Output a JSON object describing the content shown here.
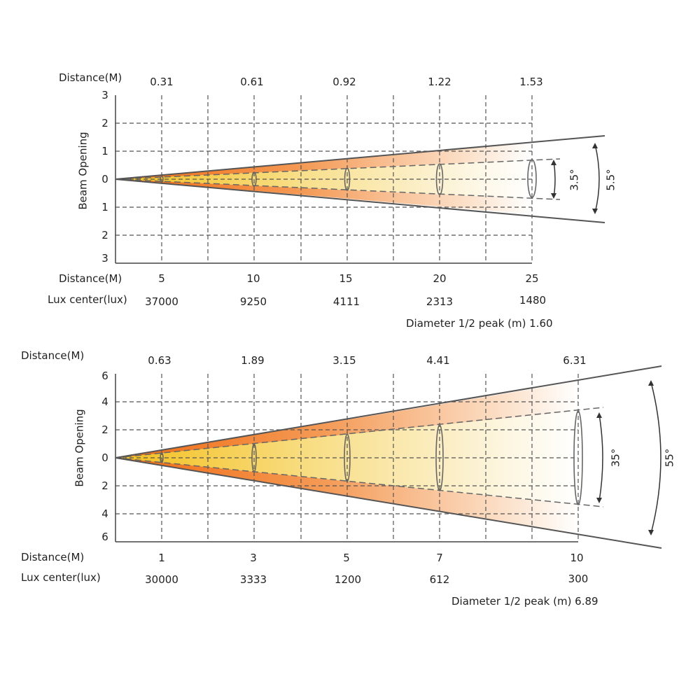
{
  "chart_data": [
    {
      "type": "beam-diagram",
      "top_axis_label": "Distance(M)",
      "bottom_axis_label": "Distance(M)",
      "lux_label": "Lux center(lux)",
      "ylabel": "Beam Opening",
      "y_ticks": [
        "3",
        "2",
        "1",
        "0",
        "1",
        "2",
        "3"
      ],
      "diameters": [
        "0.31",
        "0.61",
        "0.92",
        "1.22",
        "1.53"
      ],
      "distances": [
        "5",
        "10",
        "15",
        "20",
        "25"
      ],
      "lux": [
        "37000",
        "9250",
        "4111",
        "2313",
        "1480"
      ],
      "note": "Diameter 1/2 peak (m) 1.60",
      "inner_angle": "3.5°",
      "outer_angle": "5.5°"
    },
    {
      "type": "beam-diagram",
      "top_axis_label": "Distance(M)",
      "bottom_axis_label": "Distance(M)",
      "lux_label": "Lux center(lux)",
      "ylabel": "Beam Opening",
      "y_ticks": [
        "6",
        "4",
        "2",
        "0",
        "2",
        "4",
        "6"
      ],
      "diameters": [
        "0.63",
        "1.89",
        "3.15",
        "4.41",
        "6.31"
      ],
      "distances": [
        "1",
        "3",
        "5",
        "7",
        "10"
      ],
      "lux": [
        "30000",
        "3333",
        "1200",
        "612",
        "300"
      ],
      "note": "Diameter 1/2 peak (m) 6.89",
      "inner_angle": "35°",
      "outer_angle": "55°"
    }
  ]
}
